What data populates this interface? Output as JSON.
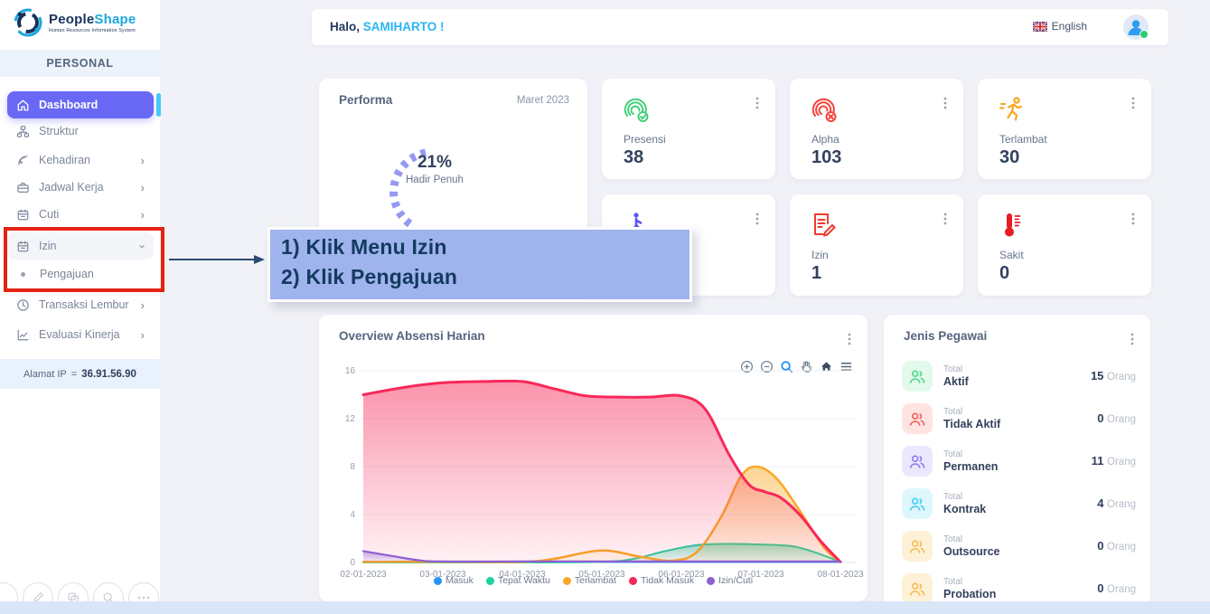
{
  "brand": {
    "name_primary": "People",
    "name_secondary": "Shape",
    "tagline": "Human Resources Information System"
  },
  "sidebar": {
    "section_label": "PERSONAL",
    "items": [
      {
        "label": "Dashboard",
        "icon": "home-icon",
        "active": true
      },
      {
        "label": "Struktur",
        "icon": "org-chart-icon"
      },
      {
        "label": "Kehadiran",
        "icon": "attendance-icon",
        "chevron": "right"
      },
      {
        "label": "Jadwal Kerja",
        "icon": "briefcase-icon",
        "chevron": "right"
      },
      {
        "label": "Cuti",
        "icon": "calendar-icon",
        "chevron": "right"
      },
      {
        "label": "Izin",
        "icon": "calendar-icon",
        "chevron": "down",
        "highlighted": true
      },
      {
        "label": "Pengajuan",
        "icon": "bullet-dot",
        "submenu": true,
        "highlighted": true
      },
      {
        "label": "Transaksi Lembur",
        "icon": "clock-icon",
        "chevron": "right"
      },
      {
        "label": "Evaluasi Kinerja",
        "icon": "line-chart-icon",
        "chevron": "right"
      }
    ],
    "ip_label": "Alamat IP",
    "ip_equals": "=",
    "ip_value": "36.91.56.90"
  },
  "header": {
    "greeting_prefix": "Halo,",
    "greeting_name": "SAMIHARTO !",
    "language": "English"
  },
  "performa": {
    "title": "Performa",
    "period": "Maret 2023",
    "percent": "21%",
    "percent_label": "Hadir Penuh",
    "gauge_color": "#8187f0"
  },
  "stats": [
    {
      "label": "Presensi",
      "value": "38",
      "icon": "fingerprint-check-icon",
      "color": "#45d079"
    },
    {
      "label": "Alpha",
      "value": "103",
      "icon": "fingerprint-x-icon",
      "color": "#f4433c"
    },
    {
      "label": "Terlambat",
      "value": "30",
      "icon": "runner-icon",
      "color": "#f7a823"
    },
    {
      "label": "",
      "value": "",
      "icon": "walker-icon",
      "color": "#5a55f2"
    },
    {
      "label": "Izin",
      "value": "1",
      "icon": "document-pen-icon",
      "color": "#f23a2e"
    },
    {
      "label": "Sakit",
      "value": "0",
      "icon": "thermometer-icon",
      "color": "#e81c24"
    }
  ],
  "annotation": {
    "line1": "1) Klik Menu Izin",
    "line2": "2) Klik Pengajuan",
    "bg_color": "#9fb3ed",
    "text_color": "#143a60"
  },
  "chart_data": {
    "type": "area",
    "title": "Overview Absensi Harian",
    "categories": [
      "02-01-2023",
      "03-01-2023",
      "04-01-2023",
      "05-01-2023",
      "06-01-2023",
      "07-01-2023",
      "08-01-2023"
    ],
    "ylim": [
      0,
      16
    ],
    "yticks": [
      0,
      4,
      8,
      12,
      16
    ],
    "grid": true,
    "legend_position": "bottom",
    "toolbar": [
      "zoom-in",
      "zoom-out",
      "selection-zoom",
      "pan",
      "home",
      "menu"
    ],
    "series": [
      {
        "name": "Masuk",
        "color": "#2196f3",
        "width": 1.5,
        "values": [
          0,
          0,
          0,
          0,
          0,
          0,
          0
        ],
        "shape": [
          [
            0,
            0.02
          ],
          [
            1,
            0.02
          ],
          [
            2,
            0.02
          ],
          [
            3,
            0.02
          ],
          [
            4,
            0.02
          ],
          [
            5,
            0.02
          ],
          [
            6,
            0.02
          ]
        ]
      },
      {
        "name": "Tepat Waktu",
        "color": "#1fd0a0",
        "width": 2,
        "values": [
          0,
          0,
          0,
          0.2,
          1.5,
          1.5,
          0
        ],
        "shape": [
          [
            0,
            0
          ],
          [
            1,
            0
          ],
          [
            2,
            0
          ],
          [
            3,
            0.05
          ],
          [
            3.4,
            0.3
          ],
          [
            3.8,
            0.95
          ],
          [
            4.2,
            1.45
          ],
          [
            4.6,
            1.55
          ],
          [
            5,
            1.5
          ],
          [
            5.4,
            1.35
          ],
          [
            5.7,
            0.8
          ],
          [
            6,
            0.05
          ]
        ]
      },
      {
        "name": "Terlambat",
        "color": "#f9a825",
        "width": 2.5,
        "values": [
          0,
          0,
          0,
          1,
          0.2,
          8,
          0
        ],
        "shape": [
          [
            0,
            0.05
          ],
          [
            1,
            0.05
          ],
          [
            2,
            0.05
          ],
          [
            2.4,
            0.3
          ],
          [
            3,
            1
          ],
          [
            3.5,
            0.45
          ],
          [
            3.9,
            0.15
          ],
          [
            4.2,
            0.9
          ],
          [
            4.5,
            3.8
          ],
          [
            4.75,
            7.2
          ],
          [
            4.95,
            8
          ],
          [
            5.2,
            7
          ],
          [
            5.5,
            4.2
          ],
          [
            5.8,
            1.2
          ],
          [
            6,
            0.05
          ]
        ]
      },
      {
        "name": "Tidak Masuk",
        "color": "#f8285a",
        "width": 3,
        "values": [
          14,
          15,
          15,
          13.8,
          13.9,
          5.9,
          0
        ],
        "shape": [
          [
            0,
            14
          ],
          [
            0.5,
            14.6
          ],
          [
            1,
            15
          ],
          [
            1.5,
            15.1
          ],
          [
            2,
            15.1
          ],
          [
            2.4,
            14.5
          ],
          [
            2.8,
            13.9
          ],
          [
            3.2,
            13.8
          ],
          [
            3.6,
            13.8
          ],
          [
            4,
            13.9
          ],
          [
            4.3,
            12.8
          ],
          [
            4.6,
            9
          ],
          [
            4.85,
            6.5
          ],
          [
            5.05,
            5.9
          ],
          [
            5.25,
            5.4
          ],
          [
            5.5,
            3.9
          ],
          [
            5.75,
            1.8
          ],
          [
            6,
            0.05
          ]
        ]
      },
      {
        "name": "Izin/Cuti",
        "color": "#8e5fd3",
        "width": 2.2,
        "values": [
          1,
          0.1,
          0.1,
          0.1,
          0.1,
          0.1,
          0.1
        ],
        "shape": [
          [
            0,
            0.95
          ],
          [
            0.35,
            0.55
          ],
          [
            0.7,
            0.18
          ],
          [
            1,
            0.08
          ],
          [
            2,
            0.08
          ],
          [
            3,
            0.08
          ],
          [
            4,
            0.08
          ],
          [
            5,
            0.08
          ],
          [
            6,
            0.08
          ]
        ]
      }
    ]
  },
  "jenis_pegawai": {
    "title": "Jenis Pegawai",
    "total_label": "Total",
    "unit": "Orang",
    "rows": [
      {
        "name": "Aktif",
        "value": "15",
        "color": "#52d689",
        "bg": "#e2f9eb"
      },
      {
        "name": "Tidak Aktif",
        "value": "0",
        "color": "#f2625a",
        "bg": "#fde4e1"
      },
      {
        "name": "Permanen",
        "value": "11",
        "color": "#8b7bf3",
        "bg": "#ebe8fd"
      },
      {
        "name": "Kontrak",
        "value": "4",
        "color": "#45cdf0",
        "bg": "#def7fc"
      },
      {
        "name": "Outsource",
        "value": "0",
        "color": "#f6bb54",
        "bg": "#fdf1d8"
      },
      {
        "name": "Probation",
        "value": "0",
        "color": "#f6bb54",
        "bg": "#fdf1d8"
      }
    ]
  }
}
